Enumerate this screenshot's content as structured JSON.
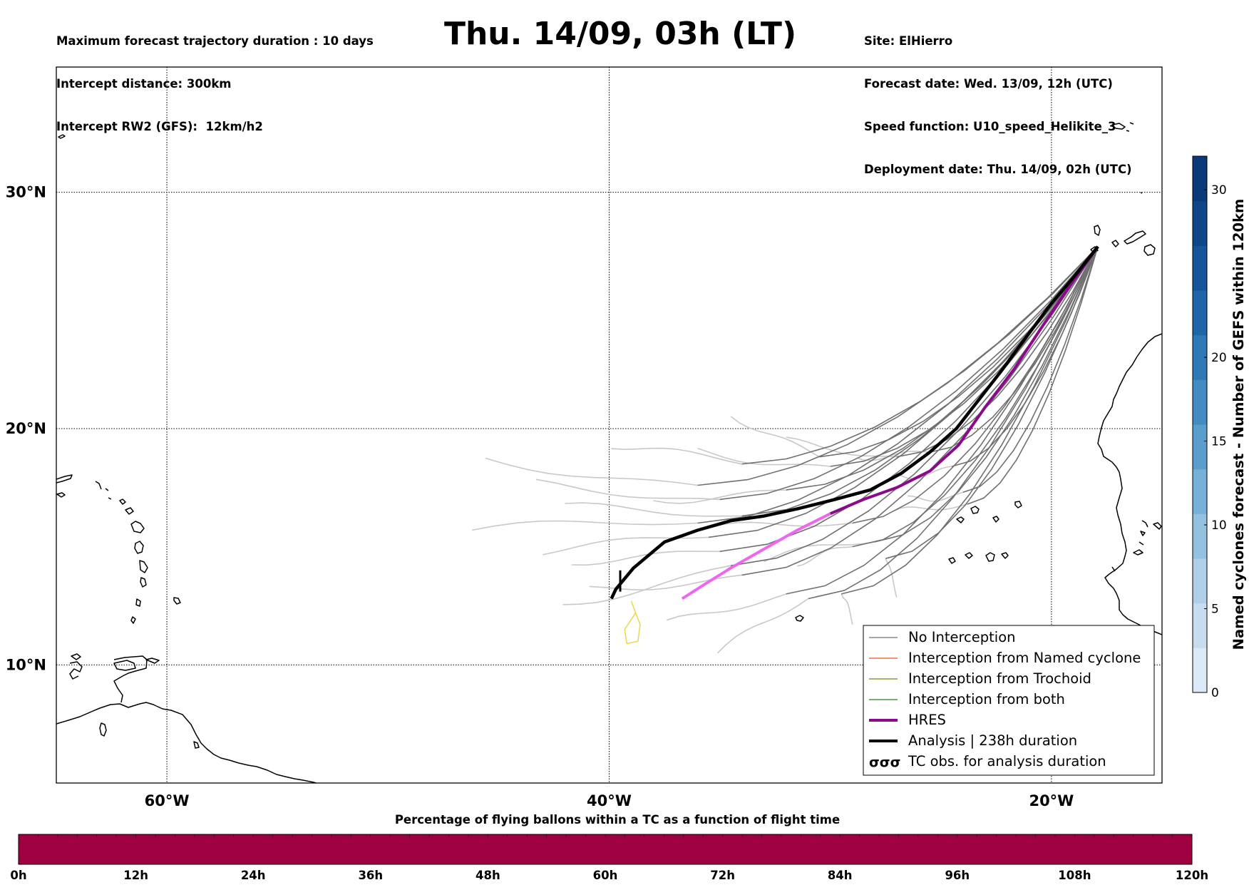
{
  "header": {
    "left_lines": [
      "Maximum forecast trajectory duration : 10 days",
      "Intercept distance: 300km",
      "Intercept RW2 (GFS):  12km/h2"
    ],
    "title": "Thu. 14/09, 03h (LT)",
    "right_lines": [
      "Site: ElHierro",
      "Forecast date: Wed. 13/09, 12h (UTC)",
      "Speed function: U10_speed_Helikite_3",
      "Deployment date: Thu. 14/09, 02h (UTC)"
    ]
  },
  "map": {
    "lon_range": [
      -65,
      -15
    ],
    "lat_range": [
      5,
      35.3
    ],
    "lat_ticks": [
      {
        "value": 30,
        "label": "30°N"
      },
      {
        "value": 20,
        "label": "20°N"
      },
      {
        "value": 10,
        "label": "10°N"
      }
    ],
    "lon_ticks": [
      {
        "value": -60,
        "label": "60°W"
      },
      {
        "value": -40,
        "label": "40°W"
      },
      {
        "value": -20,
        "label": "20°W"
      }
    ],
    "site_origin": {
      "lon": -17.9,
      "lat": 27.7
    },
    "colors": {
      "no_interception": "#707070",
      "ensemble_light": "#c8c8c8",
      "named_cyclone": "#e8541e",
      "trochoid": "#808020",
      "both": "#208020",
      "hres_dark": "#8b0a8b",
      "hres_light": "#ee66ee",
      "analysis": "#000000",
      "stray_track": "#e8d84a"
    },
    "hres_track": [
      [
        -17.9,
        27.7
      ],
      [
        -19.2,
        26.0
      ],
      [
        -20.5,
        24.2
      ],
      [
        -21.7,
        22.5
      ],
      [
        -23.0,
        20.9
      ],
      [
        -24.2,
        19.3
      ],
      [
        -25.5,
        18.2
      ],
      [
        -27.0,
        17.5
      ],
      [
        -28.5,
        17.0
      ],
      [
        -30.0,
        16.4
      ],
      [
        -31.5,
        15.7
      ],
      [
        -33.0,
        14.9
      ],
      [
        -34.5,
        14.1
      ],
      [
        -35.7,
        13.4
      ],
      [
        -36.7,
        12.8
      ]
    ],
    "hres_split_index": 9,
    "analysis_track": [
      [
        -17.9,
        27.7
      ],
      [
        -19.0,
        26.4
      ],
      [
        -20.0,
        25.3
      ],
      [
        -21.2,
        23.8
      ],
      [
        -22.3,
        22.4
      ],
      [
        -23.3,
        21.2
      ],
      [
        -24.3,
        20.0
      ],
      [
        -25.5,
        19.0
      ],
      [
        -26.8,
        18.1
      ],
      [
        -28.2,
        17.4
      ],
      [
        -29.8,
        17.0
      ],
      [
        -31.5,
        16.6
      ],
      [
        -33.0,
        16.3
      ],
      [
        -34.5,
        16.1
      ],
      [
        -36.0,
        15.7
      ],
      [
        -37.5,
        15.2
      ],
      [
        -38.9,
        14.1
      ],
      [
        -39.7,
        13.2
      ],
      [
        -39.9,
        12.8
      ]
    ],
    "analysis_tick": [
      [
        -39.5,
        13.1
      ],
      [
        -39.5,
        14.0
      ]
    ],
    "stray_track": [
      [
        -39.0,
        12.7
      ],
      [
        -38.6,
        11.7
      ],
      [
        -38.7,
        11.0
      ],
      [
        -39.2,
        10.9
      ],
      [
        -39.3,
        11.5
      ],
      [
        -38.8,
        12.2
      ]
    ],
    "ensemble_members": [
      {
        "end": [
          -39.9,
          19.5
        ],
        "end_bend": [
          -34.0,
          18.5
        ]
      },
      {
        "end": [
          -34.5,
          20.7
        ],
        "end_bend": [
          -30.5,
          18.8
        ]
      },
      {
        "end": [
          -45.6,
          18.6
        ],
        "end_bend": [
          -36.0,
          17.6
        ]
      },
      {
        "end": [
          -43.3,
          17.5
        ],
        "end_bend": [
          -35.0,
          17.0
        ]
      },
      {
        "end": [
          -42.0,
          16.6
        ],
        "end_bend": [
          -34.0,
          16.3
        ]
      },
      {
        "end": [
          -46.2,
          15.8
        ],
        "end_bend": [
          -36.0,
          16.0
        ]
      },
      {
        "end": [
          -43.0,
          15.0
        ],
        "end_bend": [
          -35.5,
          15.4
        ]
      },
      {
        "end": [
          -41.7,
          14.5
        ],
        "end_bend": [
          -35.0,
          14.8
        ]
      },
      {
        "end": [
          -42.1,
          12.5
        ],
        "end_bend": [
          -34.5,
          14.2
        ]
      },
      {
        "end": [
          -40.9,
          13.0
        ],
        "end_bend": [
          -34.0,
          13.8
        ]
      },
      {
        "end": [
          -37.4,
          11.6
        ],
        "end_bend": [
          -32.0,
          13.0
        ]
      },
      {
        "end": [
          -35.1,
          10.5
        ],
        "end_bend": [
          -31.0,
          12.8
        ]
      },
      {
        "end": [
          -29.0,
          12.0
        ],
        "end_bend": [
          -29.5,
          13.0
        ]
      },
      {
        "end": [
          -31.5,
          14.5
        ],
        "end_bend": [
          -29.0,
          15.0
        ]
      },
      {
        "end": [
          -38.0,
          17.0
        ],
        "end_bend": [
          -32.0,
          17.4
        ]
      },
      {
        "end": [
          -36.0,
          18.9
        ],
        "end_bend": [
          -30.0,
          18.4
        ]
      },
      {
        "end": [
          -32.0,
          19.3
        ],
        "end_bend": [
          -27.0,
          18.8
        ]
      },
      {
        "end": [
          -35.5,
          15.7
        ],
        "end_bend": [
          -29.0,
          16.0
        ]
      },
      {
        "end": [
          -33.0,
          14.6
        ],
        "end_bend": [
          -28.0,
          15.2
        ]
      },
      {
        "end": [
          -27.0,
          13.2
        ],
        "end_bend": [
          -27.5,
          14.5
        ]
      },
      {
        "end": [
          -28.8,
          18.9
        ],
        "end_bend": [
          -25.5,
          19.0
        ]
      },
      {
        "end": [
          -27.0,
          17.9
        ],
        "end_bend": [
          -24.5,
          18.4
        ]
      },
      {
        "end": [
          -26.5,
          16.8
        ],
        "end_bend": [
          -24.0,
          17.3
        ]
      },
      {
        "end": [
          -27.2,
          16.3
        ],
        "end_bend": [
          -23.8,
          16.8
        ]
      }
    ]
  },
  "legend": {
    "items": [
      {
        "label": "No Interception",
        "style": "thin",
        "color": "#707070"
      },
      {
        "label": "Interception from Named cyclone",
        "style": "thin",
        "color": "#e8541e"
      },
      {
        "label": "Interception from Trochoid",
        "style": "thin",
        "color": "#808020"
      },
      {
        "label": "Interception from both",
        "style": "thin",
        "color": "#208020"
      },
      {
        "label": "HRES",
        "style": "thick",
        "color": "#8b0a8b"
      },
      {
        "label": "Analysis | 238h duration",
        "style": "thick",
        "color": "#000000"
      },
      {
        "label": "TC obs. for analysis duration",
        "style": "symbol",
        "color": "#000000"
      }
    ]
  },
  "colorbar_right": {
    "label": "Named cyclones forecast - Number of GEFS within 120km",
    "min": 0,
    "max": 32,
    "ticks": [
      0,
      5,
      10,
      15,
      20,
      30
    ],
    "colors": [
      "#dbe8f5",
      "#c8dcef",
      "#b0cfe8",
      "#95c1e0",
      "#77b0d8",
      "#5a9ece",
      "#428bc3",
      "#2f78b6",
      "#1f66a8",
      "#15559a",
      "#0e468a",
      "#0a3a7a"
    ]
  },
  "colorbar_bottom": {
    "title": "Percentage of flying ballons within a TC as a function of flight time",
    "fill_color": "#9e0040",
    "tick_labels": [
      "0h",
      "12h",
      "24h",
      "36h",
      "48h",
      "60h",
      "72h",
      "84h",
      "96h",
      "108h",
      "120h"
    ],
    "segments": 60
  }
}
